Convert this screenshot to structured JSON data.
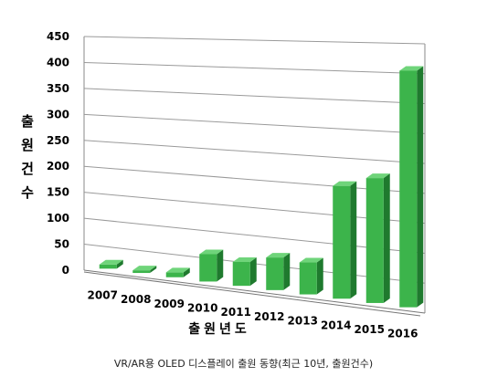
{
  "chart_data": {
    "type": "bar",
    "categories": [
      "2007",
      "2008",
      "2009",
      "2010",
      "2011",
      "2012",
      "2013",
      "2014",
      "2015",
      "2016"
    ],
    "values": [
      8,
      5,
      9,
      50,
      43,
      58,
      56,
      195,
      213,
      398
    ],
    "ylim": [
      0,
      450
    ],
    "yticks": [
      "0",
      "50",
      "100",
      "150",
      "200",
      "250",
      "300",
      "350",
      "400",
      "450"
    ],
    "ylabel": "출원건수",
    "xlabel": "출원년도",
    "grid": true,
    "bar_color": "#3cb44b"
  },
  "caption": "VR/AR용 OLED 디스플레이 출원 동향(최근 10년, 출원건수)"
}
